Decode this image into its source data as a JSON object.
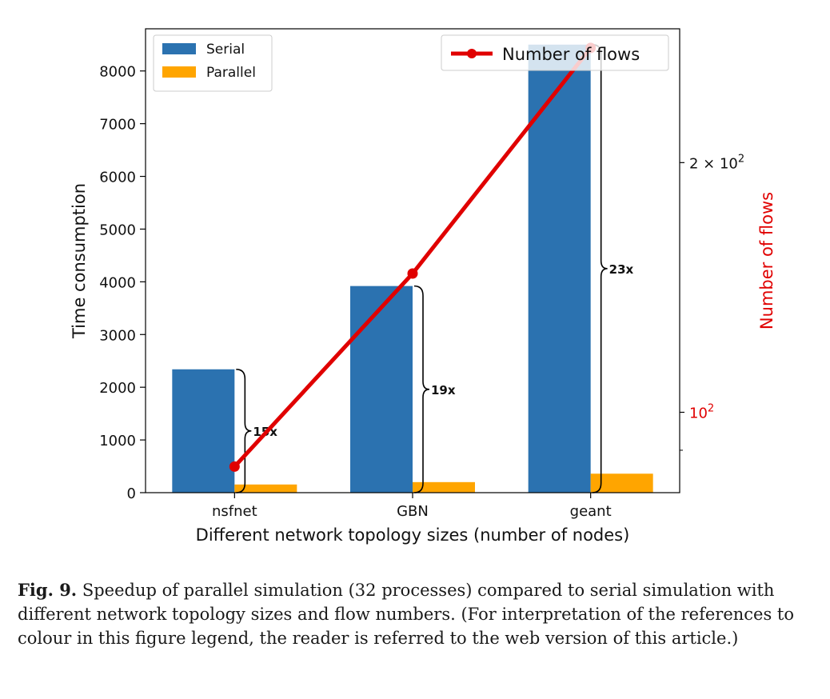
{
  "chart_data": {
    "type": "bar",
    "categories": [
      "nsfnet",
      "GBN",
      "geant"
    ],
    "series": [
      {
        "name": "Serial",
        "values": [
          2340,
          3920,
          8500
        ],
        "color": "#2b72b0"
      },
      {
        "name": "Parallel",
        "values": [
          155,
          200,
          360
        ],
        "color": "#ffa500"
      }
    ],
    "line_series": {
      "name": "Number of flows",
      "values": [
        86,
        147,
        275
      ],
      "color": "#e00000",
      "axis": "right",
      "scale": "log"
    },
    "speedup_labels": [
      "15x",
      "19x",
      "23x"
    ],
    "xlabel": "Different network topology sizes (number of nodes)",
    "ylabel": "Time consumption",
    "ylabel_right": "Number of flows",
    "ylim": [
      0,
      8800
    ],
    "yticks": [
      0,
      1000,
      2000,
      3000,
      4000,
      5000,
      6000,
      7000,
      8000
    ],
    "yticks_right": [
      {
        "value": 100,
        "label_base": "10",
        "label_exp": "2"
      },
      {
        "value": 200,
        "label_base": "2 × 10",
        "label_exp": "2"
      }
    ],
    "right_ylim": [
      80,
      290
    ],
    "right_label_color": "#e00000",
    "grid": false,
    "legend_left_placement": "top-left",
    "legend_right_placement": "top-right"
  },
  "caption": {
    "label": "Fig. 9.",
    "text": "Speedup of parallel simulation (32 processes) compared to serial simulation with different network topology sizes and flow numbers. (For interpretation of the references to colour in this figure legend, the reader is referred to the web version of this article.)"
  }
}
